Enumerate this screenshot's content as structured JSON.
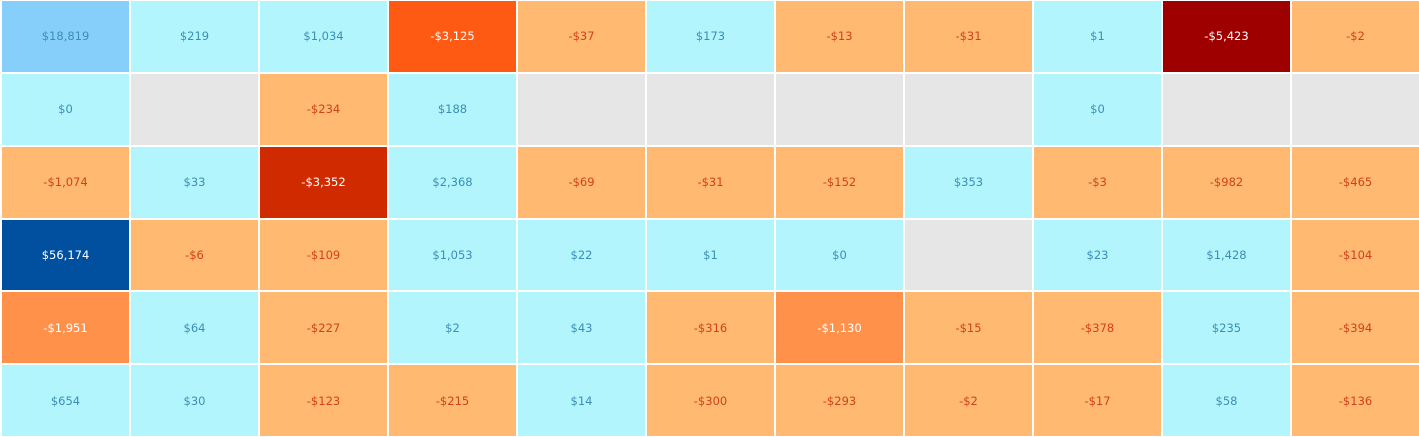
{
  "chart_data": {
    "type": "heatmap",
    "rows": 6,
    "cols": 11,
    "colors": {
      "empty": "#e6e6e6",
      "positive_light": "#b2f5fd",
      "positive_mid": "#87cffb",
      "positive_dark": "#00509f",
      "negative_light": "#ffb971",
      "negative_mid": "#ff914b",
      "negative_strong": "#ff5a14",
      "negative_stronger": "#d02a00",
      "negative_darkest": "#9e0000",
      "text_positive": "#3c8eb6",
      "text_negative": "#d0421b",
      "text_on_dark": "#ffffff"
    },
    "cells": [
      [
        {
          "label": "$18,819",
          "value": 18819
        },
        {
          "label": "$219",
          "value": 219
        },
        {
          "label": "$1,034",
          "value": 1034
        },
        {
          "label": "-$3,125",
          "value": -3125
        },
        {
          "label": "-$37",
          "value": -37
        },
        {
          "label": "$173",
          "value": 173
        },
        {
          "label": "-$13",
          "value": -13
        },
        {
          "label": "-$31",
          "value": -31
        },
        {
          "label": "$1",
          "value": 1
        },
        {
          "label": "-$5,423",
          "value": -5423
        },
        {
          "label": "-$2",
          "value": -2
        }
      ],
      [
        {
          "label": "$0",
          "value": 0
        },
        {
          "label": "",
          "value": null
        },
        {
          "label": "-$234",
          "value": -234
        },
        {
          "label": "$188",
          "value": 188
        },
        {
          "label": "",
          "value": null
        },
        {
          "label": "",
          "value": null
        },
        {
          "label": "",
          "value": null
        },
        {
          "label": "",
          "value": null
        },
        {
          "label": "$0",
          "value": 0
        },
        {
          "label": "",
          "value": null
        },
        {
          "label": "",
          "value": null
        }
      ],
      [
        {
          "label": "-$1,074",
          "value": -1074
        },
        {
          "label": "$33",
          "value": 33
        },
        {
          "label": "-$3,352",
          "value": -3352
        },
        {
          "label": "$2,368",
          "value": 2368
        },
        {
          "label": "-$69",
          "value": -69
        },
        {
          "label": "-$31",
          "value": -31
        },
        {
          "label": "-$152",
          "value": -152
        },
        {
          "label": "$353",
          "value": 353
        },
        {
          "label": "-$3",
          "value": -3
        },
        {
          "label": "-$982",
          "value": -982
        },
        {
          "label": "-$465",
          "value": -465
        }
      ],
      [
        {
          "label": "$56,174",
          "value": 56174
        },
        {
          "label": "-$6",
          "value": -6
        },
        {
          "label": "-$109",
          "value": -109
        },
        {
          "label": "$1,053",
          "value": 1053
        },
        {
          "label": "$22",
          "value": 22
        },
        {
          "label": "$1",
          "value": 1
        },
        {
          "label": "$0",
          "value": 0
        },
        {
          "label": "",
          "value": null
        },
        {
          "label": "$23",
          "value": 23
        },
        {
          "label": "$1,428",
          "value": 1428
        },
        {
          "label": "-$104",
          "value": -104
        }
      ],
      [
        {
          "label": "-$1,951",
          "value": -1951
        },
        {
          "label": "$64",
          "value": 64
        },
        {
          "label": "-$227",
          "value": -227
        },
        {
          "label": "$2",
          "value": 2
        },
        {
          "label": "$43",
          "value": 43
        },
        {
          "label": "-$316",
          "value": -316
        },
        {
          "label": "-$1,130",
          "value": -1130
        },
        {
          "label": "-$15",
          "value": -15
        },
        {
          "label": "-$378",
          "value": -378
        },
        {
          "label": "$235",
          "value": 235
        },
        {
          "label": "-$394",
          "value": -394
        }
      ],
      [
        {
          "label": "$654",
          "value": 654
        },
        {
          "label": "$30",
          "value": 30
        },
        {
          "label": "-$123",
          "value": -123
        },
        {
          "label": "-$215",
          "value": -215
        },
        {
          "label": "$14",
          "value": 14
        },
        {
          "label": "-$300",
          "value": -300
        },
        {
          "label": "-$293",
          "value": -293
        },
        {
          "label": "-$2",
          "value": -2
        },
        {
          "label": "-$17",
          "value": -17
        },
        {
          "label": "$58",
          "value": 58
        },
        {
          "label": "-$136",
          "value": -136
        }
      ]
    ]
  }
}
